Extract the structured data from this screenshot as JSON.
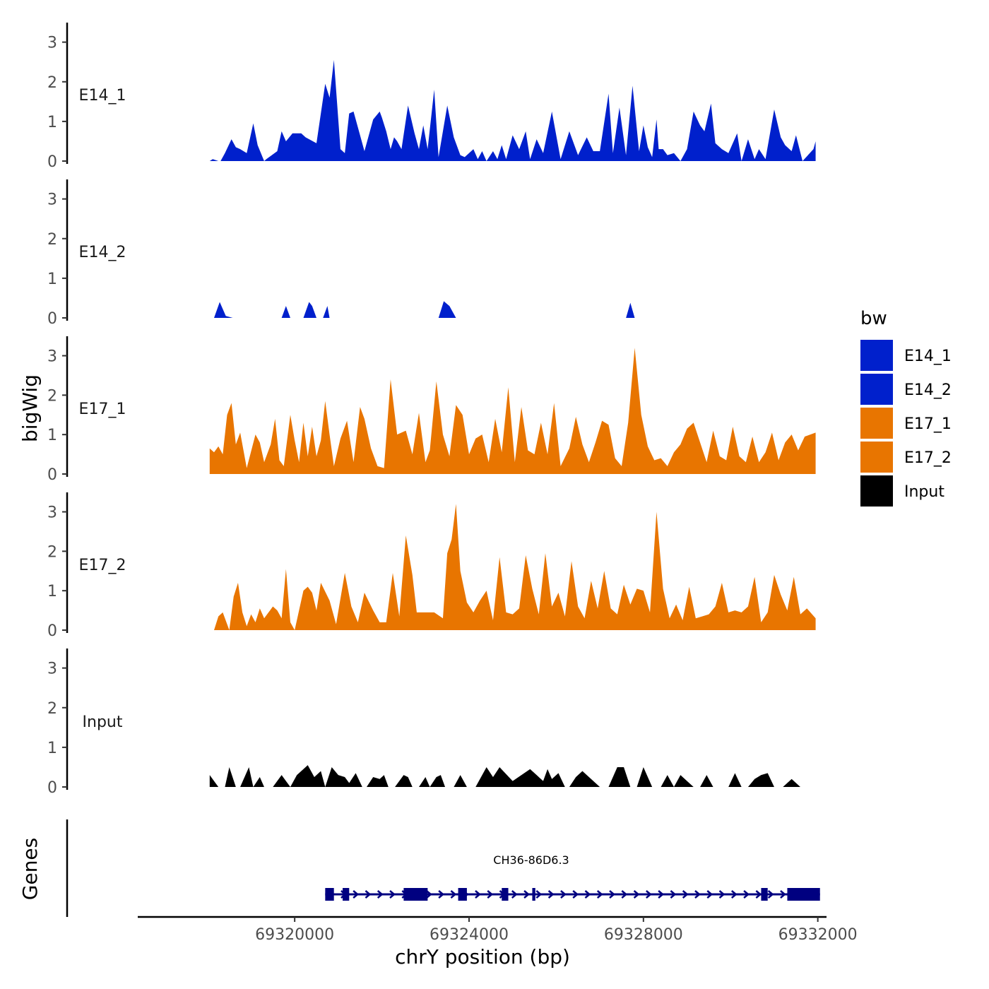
{
  "chart_data": {
    "type": "area",
    "ylabel": "bigWig",
    "xlabel": "chrY position (bp)",
    "xlim": [
      69316400,
      69332200
    ],
    "x_ticks": [
      69320000,
      69324000,
      69328000,
      69332000
    ],
    "x_tick_labels": [
      "69320000",
      "69324000",
      "69328000",
      "69332000"
    ],
    "ylim": [
      0,
      3.35
    ],
    "y_ticks": [
      0,
      1,
      2,
      3
    ],
    "y_tick_labels": [
      "0",
      "1",
      "2",
      "3"
    ],
    "legend": {
      "title": "bw",
      "position": "right",
      "entries": [
        {
          "label": "E14_1",
          "color": "#0020CC"
        },
        {
          "label": "E14_2",
          "color": "#0020CC"
        },
        {
          "label": "E17_1",
          "color": "#E87500"
        },
        {
          "label": "E17_2",
          "color": "#E87500"
        },
        {
          "label": "Input",
          "color": "#000000"
        }
      ]
    },
    "series": [
      {
        "name": "E14_1",
        "color": "#0020CC",
        "x": [
          69318050,
          69318120,
          69318250,
          69318300,
          69318400,
          69318550,
          69318650,
          69318750,
          69318900,
          69319050,
          69319150,
          69319300,
          69319350,
          69319600,
          69319700,
          69319800,
          69319950,
          69320150,
          69320250,
          69320500,
          69320700,
          69320800,
          69320900,
          69321050,
          69321150,
          69321250,
          69321350,
          69321600,
          69321800,
          69321950,
          69322000,
          69322100,
          69322200,
          69322280,
          69322350,
          69322450,
          69322600,
          69322750,
          69322850,
          69322950,
          69323050,
          69323200,
          69323300,
          69323500,
          69323650,
          69323800,
          69323900,
          69324100,
          69324200,
          69324300,
          69324400,
          69324550,
          69324650,
          69324750,
          69324850,
          69325000,
          69325150,
          69325300,
          69325400,
          69325550,
          69325700,
          69325900,
          69326100,
          69326300,
          69326500,
          69326700,
          69326850,
          69327000,
          69327200,
          69327300,
          69327450,
          69327600,
          69327750,
          69327900,
          69328000,
          69328100,
          69328200,
          69328300,
          69328350,
          69328450,
          69328550,
          69328700,
          69328850,
          69329000,
          69329150,
          69329300,
          69329400,
          69329550,
          69329650,
          69329800,
          69329950,
          69330150,
          69330250,
          69330400,
          69330550,
          69330650,
          69330800,
          69331000,
          69331150,
          69331250,
          69331400,
          69331500,
          69331650,
          69331900,
          69331950
        ],
        "y": [
          0,
          0.05,
          0,
          0,
          0.2,
          0.55,
          0.35,
          0.3,
          0.2,
          0.95,
          0.4,
          0,
          0.05,
          0.25,
          0.75,
          0.5,
          0.7,
          0.7,
          0.6,
          0.45,
          1.95,
          1.6,
          2.55,
          0.3,
          0.2,
          1.2,
          1.25,
          0.25,
          1.05,
          1.25,
          1.1,
          0.75,
          0.3,
          0.6,
          0.5,
          0.3,
          1.4,
          0.7,
          0.3,
          0.9,
          0.3,
          1.8,
          0.1,
          1.4,
          0.6,
          0.15,
          0.1,
          0.3,
          0.05,
          0.25,
          0,
          0.25,
          0.05,
          0.4,
          0.05,
          0.65,
          0.3,
          0.75,
          0.05,
          0.55,
          0.2,
          1.25,
          0.05,
          0.75,
          0.15,
          0.6,
          0.25,
          0.25,
          1.7,
          0.2,
          1.35,
          0.15,
          1.9,
          0.25,
          0.9,
          0.35,
          0.1,
          1.05,
          0.3,
          0.3,
          0.15,
          0.2,
          0,
          0.3,
          1.25,
          0.9,
          0.75,
          1.45,
          0.45,
          0.3,
          0.2,
          0.7,
          0,
          0.55,
          0.05,
          0.3,
          0.05,
          1.3,
          0.6,
          0.4,
          0.25,
          0.65,
          0,
          0.3,
          0.5
        ]
      },
      {
        "name": "E14_2",
        "color": "#0020CC",
        "x": [
          69318150,
          69318280,
          69318420,
          69318580,
          69319700,
          69319800,
          69319900,
          69320200,
          69320330,
          69320400,
          69320500,
          69320650,
          69320750,
          69320800,
          69320860,
          69323300,
          69323420,
          69323550,
          69323700,
          69327600,
          69327700,
          69327800
        ],
        "y": [
          0,
          0.4,
          0.05,
          0,
          0,
          0.3,
          0,
          0,
          0.4,
          0.3,
          0,
          0,
          0.3,
          0,
          0,
          0,
          0.42,
          0.3,
          0,
          0,
          0.38,
          0
        ],
        "note": "x positions paired: (start, peak, ..., end) triplets"
      },
      {
        "name": "E17_1",
        "color": "#E87500",
        "x": [
          69318050,
          69318150,
          69318250,
          69318350,
          69318450,
          69318550,
          69318650,
          69318750,
          69318900,
          69319100,
          69319200,
          69319300,
          69319450,
          69319550,
          69319650,
          69319750,
          69319900,
          69320000,
          69320100,
          69320200,
          69320300,
          69320400,
          69320500,
          69320600,
          69320700,
          69320800,
          69320900,
          69321050,
          69321200,
          69321350,
          69321500,
          69321600,
          69321750,
          69321900,
          69322050,
          69322200,
          69322350,
          69322550,
          69322700,
          69322850,
          69323000,
          69323100,
          69323250,
          69323400,
          69323550,
          69323700,
          69323850,
          69324000,
          69324150,
          69324300,
          69324450,
          69324600,
          69324750,
          69324900,
          69325050,
          69325200,
          69325350,
          69325500,
          69325650,
          69325800,
          69325950,
          69326100,
          69326300,
          69326450,
          69326600,
          69326750,
          69326900,
          69327050,
          69327200,
          69327350,
          69327500,
          69327650,
          69327800,
          69327950,
          69328100,
          69328250,
          69328400,
          69328550,
          69328700,
          69328850,
          69329000,
          69329150,
          69329300,
          69329450,
          69329600,
          69329750,
          69329900,
          69330050,
          69330200,
          69330350,
          69330500,
          69330650,
          69330800,
          69330950,
          69331100,
          69331250,
          69331400,
          69331550,
          69331700,
          69331950
        ],
        "y": [
          0.65,
          0.55,
          0.7,
          0.5,
          1.5,
          1.8,
          0.75,
          1.05,
          0.15,
          1.0,
          0.8,
          0.3,
          0.75,
          1.4,
          0.35,
          0.2,
          1.5,
          0.85,
          0.3,
          1.3,
          0.45,
          1.2,
          0.45,
          0.85,
          1.85,
          1.0,
          0.2,
          0.9,
          1.35,
          0.3,
          1.7,
          1.4,
          0.65,
          0.2,
          0.15,
          2.4,
          1.0,
          1.1,
          0.5,
          1.55,
          0.3,
          0.6,
          2.35,
          1.0,
          0.45,
          1.75,
          1.5,
          0.5,
          0.9,
          1.0,
          0.3,
          1.4,
          0.55,
          2.2,
          0.3,
          1.7,
          0.6,
          0.5,
          1.3,
          0.5,
          1.8,
          0.2,
          0.65,
          1.45,
          0.75,
          0.3,
          0.8,
          1.35,
          1.25,
          0.4,
          0.2,
          1.3,
          3.2,
          1.5,
          0.7,
          0.35,
          0.4,
          0.2,
          0.55,
          0.75,
          1.15,
          1.3,
          0.8,
          0.3,
          1.1,
          0.45,
          0.35,
          1.2,
          0.45,
          0.3,
          0.95,
          0.3,
          0.55,
          1.05,
          0.35,
          0.8,
          1.0,
          0.6,
          0.95,
          1.05
        ]
      },
      {
        "name": "E17_2",
        "color": "#E87500",
        "x": [
          69318150,
          69318250,
          69318350,
          69318500,
          69318600,
          69318700,
          69318800,
          69318900,
          69319000,
          69319100,
          69319200,
          69319300,
          69319400,
          69319500,
          69319600,
          69319700,
          69319800,
          69319900,
          69320000,
          69320200,
          69320300,
          69320400,
          69320500,
          69320600,
          69320800,
          69320950,
          69321150,
          69321300,
          69321450,
          69321600,
          69321800,
          69321950,
          69322100,
          69322250,
          69322400,
          69322550,
          69322700,
          69322800,
          69322950,
          69323100,
          69323200,
          69323400,
          69323500,
          69323600,
          69323700,
          69323800,
          69323950,
          69324100,
          69324250,
          69324400,
          69324550,
          69324700,
          69324850,
          69325000,
          69325150,
          69325300,
          69325450,
          69325600,
          69325750,
          69325900,
          69326050,
          69326200,
          69326350,
          69326500,
          69326650,
          69326800,
          69326950,
          69327100,
          69327250,
          69327400,
          69327550,
          69327700,
          69327850,
          69328000,
          69328150,
          69328300,
          69328450,
          69328600,
          69328750,
          69328900,
          69329050,
          69329200,
          69329350,
          69329500,
          69329650,
          69329800,
          69329950,
          69330100,
          69330250,
          69330400,
          69330550,
          69330700,
          69330850,
          69331000,
          69331150,
          69331300,
          69331450,
          69331600,
          69331750,
          69331950
        ],
        "y": [
          0,
          0.35,
          0.45,
          0,
          0.85,
          1.2,
          0.45,
          0.1,
          0.4,
          0.2,
          0.55,
          0.3,
          0.45,
          0.6,
          0.5,
          0.3,
          1.55,
          0.2,
          0,
          1.0,
          1.1,
          0.95,
          0.5,
          1.2,
          0.75,
          0.15,
          1.45,
          0.6,
          0.2,
          0.95,
          0.5,
          0.2,
          0.2,
          1.45,
          0.35,
          2.4,
          1.4,
          0.45,
          0.45,
          0.45,
          0.45,
          0.3,
          1.95,
          2.3,
          3.2,
          1.5,
          0.7,
          0.45,
          0.75,
          1.0,
          0.25,
          1.85,
          0.45,
          0.4,
          0.55,
          1.9,
          1.05,
          0.4,
          1.95,
          0.6,
          0.95,
          0.35,
          1.75,
          0.6,
          0.3,
          1.25,
          0.55,
          1.5,
          0.55,
          0.4,
          1.15,
          0.65,
          1.05,
          1.0,
          0.45,
          3.0,
          1.05,
          0.3,
          0.65,
          0.25,
          1.1,
          0.3,
          0.35,
          0.4,
          0.6,
          1.2,
          0.45,
          0.5,
          0.45,
          0.6,
          1.35,
          0.2,
          0.45,
          1.4,
          0.9,
          0.5,
          1.35,
          0.4,
          0.55,
          0.3
        ]
      },
      {
        "name": "Input",
        "color": "#000000",
        "x": [
          69318050,
          69318150,
          69318250,
          69318400,
          69318500,
          69318650,
          69318750,
          69318950,
          69319050,
          69319200,
          69319300,
          69319500,
          69319700,
          69319800,
          69319900,
          69320050,
          69320200,
          69320300,
          69320450,
          69320600,
          69320700,
          69320850,
          69321000,
          69321150,
          69321250,
          69321400,
          69321550,
          69321650,
          69321800,
          69321950,
          69322050,
          69322150,
          69322300,
          69322500,
          69322600,
          69322700,
          69322850,
          69323000,
          69323100,
          69323250,
          69323350,
          69323450,
          69323650,
          69323800,
          69323950,
          69324150,
          69324400,
          69324550,
          69324700,
          69325000,
          69325400,
          69325550,
          69325700,
          69325800,
          69325900,
          69326050,
          69326200,
          69326300,
          69326450,
          69326600,
          69326800,
          69327000,
          69327200,
          69327400,
          69327550,
          69327700,
          69327850,
          69328000,
          69328200,
          69328400,
          69328550,
          69328700,
          69328850,
          69329000,
          69329150,
          69329300,
          69329450,
          69329600,
          69329750,
          69329950,
          69330100,
          69330250,
          69330400,
          69330550,
          69330700,
          69330850,
          69331000,
          69331200,
          69331400,
          69331600,
          69331800,
          69331950
        ],
        "y": [
          0.3,
          0.15,
          0,
          0,
          0.5,
          0,
          0,
          0.5,
          0,
          0.25,
          0,
          0,
          0.3,
          0.15,
          0,
          0.3,
          0.45,
          0.55,
          0.25,
          0.4,
          0,
          0.5,
          0.3,
          0.25,
          0.1,
          0.35,
          0,
          0,
          0.25,
          0.2,
          0.3,
          0,
          0,
          0.3,
          0.25,
          0,
          0,
          0.25,
          0,
          0.25,
          0.3,
          0,
          0,
          0.3,
          0,
          0,
          0.5,
          0.25,
          0.5,
          0.15,
          0.45,
          0.3,
          0.15,
          0.45,
          0.2,
          0.35,
          0,
          0,
          0.25,
          0.4,
          0.2,
          0,
          0,
          0.5,
          0.5,
          0,
          0,
          0.5,
          0,
          0,
          0.3,
          0,
          0.3,
          0.15,
          0,
          0,
          0.3,
          0,
          0,
          0,
          0.35,
          0,
          0,
          0.2,
          0.3,
          0.35,
          0,
          0,
          0.2,
          0,
          0,
          0
        ]
      }
    ],
    "gene_track": {
      "ylabel": "Genes",
      "gene": "CH36-86D6.3",
      "start": 69320700,
      "end": 69332050,
      "strand": "+",
      "exons": [
        [
          69320700,
          69320900
        ],
        [
          69321100,
          69321250
        ],
        [
          69322500,
          69323050
        ],
        [
          69323750,
          69323950
        ],
        [
          69324750,
          69324900
        ],
        [
          69325450,
          69325520
        ],
        [
          69330700,
          69330850
        ],
        [
          69331300,
          69332050
        ]
      ]
    }
  }
}
